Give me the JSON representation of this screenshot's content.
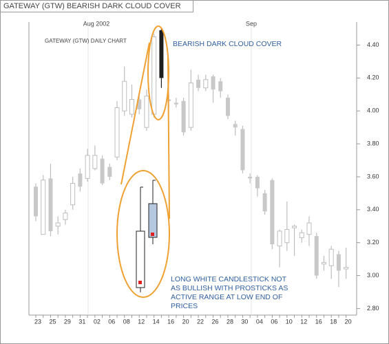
{
  "chart_data": {
    "type": "candlestick",
    "title": "GATEWAY (GTW) BEARISH DARK CLOUD COVER",
    "subtitle": "GATEWAY (GTW) DAILY CHART",
    "annotation_title": "BEARISH DARK CLOUD COVER",
    "annotation_lines": [
      "LONG WHITE CANDLESTICK NOT",
      "AS BULLISH WITH PROSTICKS AS",
      "ACTIVE RANGE AT LOW END OF",
      "PRICES"
    ],
    "month_labels": [
      "Aug 2002",
      "Sep"
    ],
    "categories": [
      "23",
      null,
      "25",
      null,
      "29",
      null,
      "31",
      null,
      "02",
      null,
      "06",
      null,
      "08",
      null,
      "12",
      null,
      "14",
      null,
      "16",
      null,
      "20",
      null,
      "22",
      null,
      "26",
      null,
      "28",
      null,
      "30",
      null,
      "04",
      null,
      "06",
      null,
      "10",
      null,
      "12",
      null,
      "16",
      null,
      "18",
      null,
      "20"
    ],
    "open": [
      3.54,
      3.25,
      3.59,
      3.3,
      3.34,
      3.43,
      3.62,
      3.59,
      3.65,
      3.71,
      3.66,
      3.72,
      4.0,
      3.98,
      4.07,
      3.9,
      3.98,
      4.49,
      4.07,
      4.05,
      4.06,
      3.9,
      4.19,
      4.14,
      4.21,
      4.18,
      4.08,
      3.92,
      3.89,
      3.6,
      3.6,
      3.5,
      3.58,
      3.18,
      3.2,
      3.29,
      3.23,
      3.25,
      3.24,
      3.07,
      3.06,
      3.13,
      3.04
    ],
    "high": [
      3.56,
      3.61,
      3.68,
      3.36,
      3.4,
      3.6,
      3.65,
      3.77,
      3.79,
      3.73,
      3.68,
      4.06,
      4.27,
      4.16,
      4.1,
      4.13,
      4.47,
      4.5,
      4.1,
      4.08,
      4.08,
      4.25,
      4.22,
      4.22,
      4.22,
      4.2,
      4.1,
      3.94,
      3.91,
      3.62,
      3.61,
      3.52,
      3.59,
      3.28,
      3.45,
      3.31,
      3.28,
      3.36,
      3.26,
      3.12,
      3.18,
      3.15,
      3.17
    ],
    "low": [
      3.33,
      3.25,
      3.24,
      3.25,
      3.31,
      3.4,
      3.51,
      3.57,
      3.64,
      3.55,
      3.58,
      3.7,
      3.97,
      3.96,
      3.98,
      3.88,
      3.96,
      4.14,
      4.02,
      4.02,
      3.85,
      3.88,
      4.12,
      4.12,
      4.05,
      4.08,
      3.95,
      3.85,
      3.62,
      3.56,
      3.48,
      3.37,
      3.16,
      3.05,
      3.15,
      3.12,
      3.2,
      3.18,
      2.98,
      3.03,
      2.98,
      2.93,
      2.98
    ],
    "close": [
      3.36,
      3.58,
      3.27,
      3.32,
      3.38,
      3.56,
      3.54,
      3.73,
      3.73,
      3.56,
      3.6,
      4.02,
      4.18,
      4.07,
      4.01,
      4.09,
      4.45,
      4.2,
      4.06,
      4.04,
      3.87,
      4.17,
      4.14,
      4.19,
      4.13,
      4.12,
      3.97,
      3.9,
      3.64,
      3.59,
      3.53,
      3.39,
      3.19,
      3.27,
      3.28,
      3.3,
      3.26,
      3.32,
      3.0,
      3.08,
      3.16,
      3.03,
      3.05
    ],
    "up_color": "#ffffff",
    "down_color": "#c8c8c8",
    "wick_color": "#bdbdbd",
    "highlight": {
      "index": 17,
      "color": "#1e1e1e"
    },
    "ylim": [
      2.76,
      4.54
    ],
    "yticks": [
      {
        "value": 2.8,
        "label": "2.80"
      },
      {
        "value": 3.0,
        "label": "3.00"
      },
      {
        "value": 3.2,
        "label": "3.20"
      },
      {
        "value": 3.4,
        "label": "3.40"
      },
      {
        "value": 3.6,
        "label": "3.60"
      },
      {
        "value": 3.8,
        "label": "3.80"
      },
      {
        "value": 4.0,
        "label": "4.00"
      },
      {
        "value": 4.2,
        "label": "4.20"
      },
      {
        "value": 4.4,
        "label": "4.40"
      }
    ]
  }
}
